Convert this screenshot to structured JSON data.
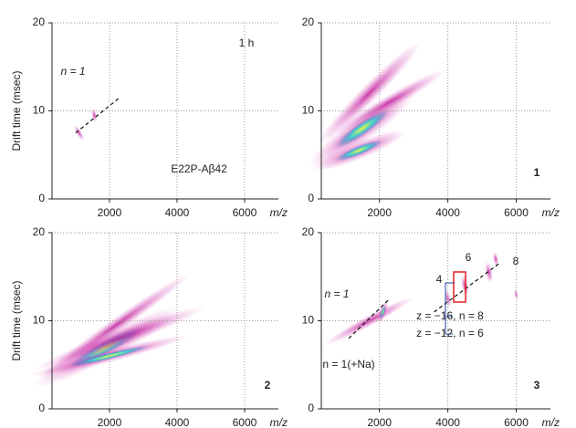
{
  "chart_data": [
    {
      "type": "heatmap",
      "ylabel": "Drift time (msec)",
      "xlabel": "m/z",
      "xlim": [
        300,
        7000
      ],
      "xticks": [
        2000,
        4000,
        6000
      ],
      "ylim": [
        0,
        20
      ],
      "yticks": [
        0,
        10,
        20
      ],
      "grid": true,
      "annotations": [
        "1 h",
        "n = 1",
        "E22P-Aβ42"
      ],
      "fit_lines": [
        {
          "x": [
            1000,
            2300
          ],
          "y": [
            7.5,
            11.5
          ]
        }
      ]
    },
    {
      "type": "heatmap",
      "xlabel": "m/z",
      "xlim": [
        300,
        7000
      ],
      "xticks": [
        2000,
        4000,
        6000
      ],
      "ylim": [
        0,
        20
      ],
      "yticks": [
        0,
        10,
        20
      ],
      "grid": true,
      "annotations": [
        "1"
      ],
      "fit_lines": []
    },
    {
      "type": "heatmap",
      "ylabel": "Drift time (msec)",
      "xlabel": "m/z",
      "xlim": [
        300,
        7000
      ],
      "xticks": [
        2000,
        4000,
        6000
      ],
      "ylim": [
        0,
        20
      ],
      "yticks": [
        0,
        10,
        20
      ],
      "grid": true,
      "annotations": [
        "2"
      ],
      "fit_lines": []
    },
    {
      "type": "heatmap",
      "xlabel": "m/z",
      "xlim": [
        300,
        7000
      ],
      "xticks": [
        2000,
        4000,
        6000
      ],
      "ylim": [
        0,
        20
      ],
      "yticks": [
        0,
        10,
        20
      ],
      "grid": true,
      "annotations": [
        "3",
        "4",
        "6",
        "8",
        "n = 1",
        "n = 1(+Na)",
        "z = −16, n = 8",
        "z = −12, n = 6"
      ],
      "fit_lines": [
        {
          "x": [
            1100,
            2300
          ],
          "y": [
            8,
            12.5
          ]
        },
        {
          "x": [
            3600,
            5500
          ],
          "y": [
            11,
            16.5
          ]
        }
      ]
    }
  ]
}
